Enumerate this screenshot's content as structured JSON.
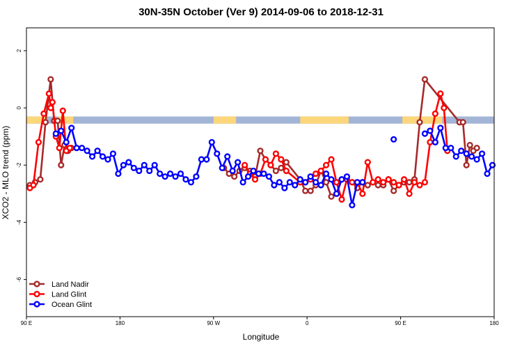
{
  "chart_data": {
    "type": "line",
    "title": "30N-35N October (Ver 9)   2014-09-06 to 2018-12-31",
    "xlabel": "Longitude",
    "ylabel": "XCO2 - MLO trend (ppm)",
    "xlim": [
      -90,
      180
    ],
    "ylim": [
      -7.3,
      2.8
    ],
    "x_ticks": [
      {
        "value": -90,
        "label": "90 E"
      },
      {
        "value": -36,
        "label": "180"
      },
      {
        "value": 18,
        "label": "90 W"
      },
      {
        "value": 72,
        "label": "0"
      },
      {
        "value": 126,
        "label": "90 E"
      },
      {
        "value": 180,
        "label": "180"
      }
    ],
    "y_ticks": [
      2,
      0,
      -2,
      -4,
      -6
    ],
    "grid": false,
    "legend_position": "bottom-left",
    "land_band": {
      "y_range": [
        -0.55,
        -0.3
      ],
      "color_ocean": "#a3b5d6",
      "color_land": "#fcd67a",
      "land_segments": [
        [
          -90,
          -78
        ],
        [
          -72,
          -63
        ],
        [
          18,
          31
        ],
        [
          68,
          96
        ],
        [
          127,
          150
        ]
      ]
    },
    "series": [
      {
        "name": "Land Nadir",
        "color": "#a52a2a",
        "x": [
          -88,
          -85,
          -82,
          -79,
          -76,
          -74,
          -72,
          -70,
          -68,
          -66,
          -64,
          24,
          27,
          30,
          33,
          36,
          39,
          42,
          45,
          48,
          51,
          54,
          57,
          60,
          68,
          71,
          74,
          77,
          80,
          83,
          86,
          89,
          92,
          95,
          98,
          101,
          104,
          107,
          110,
          113,
          116,
          119,
          122,
          125,
          128,
          131,
          134,
          137,
          140,
          160,
          162,
          164,
          166,
          168,
          170
        ],
        "y": [
          -2.7,
          -2.6,
          -2.5,
          -0.5,
          1.0,
          -0.45,
          -0.45,
          -2.0,
          -1.3,
          -1.5,
          -1.4,
          -2.1,
          -2.3,
          -2.4,
          -2.2,
          -2.1,
          -2.2,
          -2.4,
          -1.5,
          -1.8,
          -2.0,
          -2.2,
          -2.1,
          -1.9,
          -2.5,
          -2.9,
          -2.9,
          -2.7,
          -2.2,
          -2.6,
          -3.1,
          -3.0,
          -2.5,
          -2.5,
          -2.6,
          -2.8,
          -2.6,
          -2.7,
          -2.6,
          -2.7,
          -2.7,
          -2.5,
          -2.9,
          -2.7,
          -2.6,
          -2.6,
          -2.5,
          -0.5,
          1.0,
          -0.5,
          -0.5,
          -2.0,
          -1.3,
          -1.5,
          -1.4
        ]
      },
      {
        "name": "Land Glint",
        "color": "#ff0000",
        "x": [
          -88,
          -86,
          -83,
          -80,
          -77,
          -76,
          -75,
          -73,
          -71,
          -69,
          -67,
          -65,
          36,
          39,
          42,
          45,
          48,
          51,
          54,
          57,
          60,
          68,
          71,
          74,
          77,
          80,
          83,
          86,
          89,
          92,
          95,
          98,
          101,
          104,
          107,
          110,
          113,
          116,
          119,
          122,
          125,
          128,
          131,
          134,
          137,
          140,
          143,
          146,
          149,
          151,
          153
        ],
        "y": [
          -2.8,
          -2.7,
          -1.2,
          -0.2,
          0.5,
          0.0,
          0.2,
          -1.0,
          -1.4,
          -0.1,
          -1.5,
          -1.4,
          -2.0,
          -2.3,
          -2.5,
          -2.3,
          -1.8,
          -2.0,
          -1.6,
          -1.8,
          -2.2,
          -2.6,
          -2.6,
          -2.5,
          -2.3,
          -2.2,
          -2.0,
          -1.8,
          -2.6,
          -3.2,
          -2.5,
          -2.6,
          -2.6,
          -3.0,
          -1.9,
          -2.6,
          -2.5,
          -2.6,
          -2.5,
          -2.6,
          -2.7,
          -2.5,
          -3.0,
          -2.6,
          -2.7,
          -2.6,
          -1.2,
          -0.2,
          0.5,
          0.0,
          -1.5
        ]
      },
      {
        "name": "Ocean Glint",
        "color": "#0000ff",
        "x": [
          -73,
          -70,
          -67,
          -64,
          -61,
          -58,
          -55,
          -52,
          -49,
          -46,
          -43,
          -40,
          -37,
          -34,
          -31,
          -28,
          -25,
          -22,
          -19,
          -16,
          -13,
          -10,
          -7,
          -4,
          -1,
          2,
          5,
          8,
          11,
          14,
          17,
          20,
          23,
          26,
          29,
          32,
          35,
          38,
          41,
          44,
          47,
          50,
          53,
          56,
          59,
          62,
          65,
          68,
          71,
          74,
          77,
          80,
          83,
          86,
          89,
          92,
          95,
          98,
          101,
          104,
          140,
          143,
          146,
          149,
          152,
          155,
          158,
          161,
          164,
          167,
          170,
          173,
          176,
          179
        ],
        "y": [
          -0.9,
          -0.8,
          -1.2,
          -0.7,
          -1.4,
          -1.4,
          -1.5,
          -1.7,
          -1.5,
          -1.7,
          -1.8,
          -1.6,
          -2.3,
          -2.0,
          -1.9,
          -2.1,
          -2.2,
          -2.0,
          -2.2,
          -2.0,
          -2.3,
          -2.4,
          -2.3,
          -2.4,
          -2.3,
          -2.5,
          -2.6,
          -2.4,
          -1.8,
          -1.8,
          -1.2,
          -1.6,
          -2.1,
          -1.7,
          -2.2,
          -1.9,
          -2.6,
          -2.4,
          -2.2,
          -2.3,
          -2.3,
          -2.4,
          -2.7,
          -2.6,
          -2.8,
          -2.6,
          -2.7,
          -2.5,
          -2.6,
          -2.4,
          -2.6,
          -2.7,
          -2.3,
          -2.5,
          -3.0,
          -2.5,
          -2.4,
          -3.4,
          -2.6,
          -2.6,
          -0.9,
          -0.8,
          -1.2,
          -0.7,
          -1.4,
          -1.4,
          -1.7,
          -1.5,
          -1.6,
          -1.7,
          -1.8,
          -1.6,
          -2.3,
          -2.0
        ]
      }
    ],
    "extra_points": [
      {
        "series": "Ocean Glint",
        "x": 122,
        "y": -1.1
      }
    ]
  }
}
